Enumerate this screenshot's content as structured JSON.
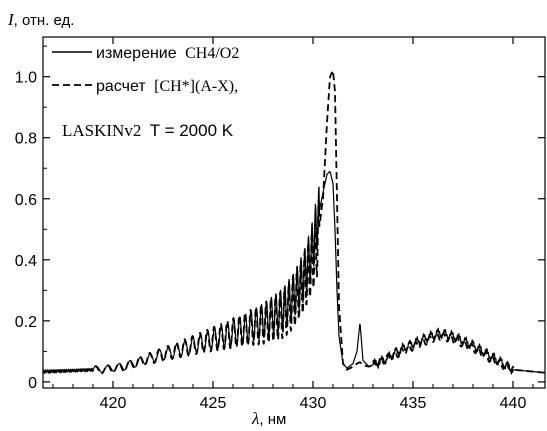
{
  "chart_data": {
    "type": "line",
    "ylabel": {
      "symbol": "I",
      "unit": ", отн. ед."
    },
    "xlabel": {
      "symbol": "λ",
      "unit": ", нм"
    },
    "xlim": [
      416.5,
      441.6
    ],
    "ylim": [
      -0.02,
      1.13
    ],
    "xticks": [
      420,
      425,
      430,
      435,
      440
    ],
    "xtick_labels": [
      "420",
      "425",
      "430",
      "435",
      "440"
    ],
    "yticks": [
      0,
      0.2,
      0.4,
      0.6,
      0.8,
      1.0
    ],
    "ytick_labels": [
      "0",
      "0.2",
      "0.4",
      "0.6",
      "0.8",
      "1.0"
    ],
    "grid": false,
    "legend_position": "top-left",
    "legend": [
      {
        "style": "solid",
        "label": "измерение",
        "formula": "CH4/O2"
      },
      {
        "style": "dashed",
        "label": "расчет",
        "formula": "[CH*](A-X),"
      }
    ],
    "annotation": {
      "model": "LASKINv2",
      "temperature": "T = 2000 K"
    },
    "series": [
      {
        "style": "solid",
        "color": "#000000",
        "x": [
          416.5,
          418,
          419.5,
          420.5,
          421.5,
          422.5,
          423.5,
          424.5,
          425.5,
          426.5,
          427.5,
          428.5,
          429,
          429.5,
          429.9,
          430.2,
          430.5,
          430.7,
          430.85,
          431.0,
          431.1,
          431.2,
          431.3,
          431.5,
          431.7,
          432.0,
          432.2,
          432.35,
          432.5,
          432.8,
          433.5,
          434.5,
          435.5,
          436.3,
          437,
          438,
          439,
          440,
          441.6
        ],
        "y": [
          0.035,
          0.038,
          0.042,
          0.05,
          0.07,
          0.09,
          0.11,
          0.13,
          0.15,
          0.17,
          0.2,
          0.24,
          0.28,
          0.34,
          0.42,
          0.52,
          0.62,
          0.68,
          0.69,
          0.65,
          0.5,
          0.3,
          0.15,
          0.06,
          0.045,
          0.06,
          0.1,
          0.195,
          0.07,
          0.05,
          0.07,
          0.11,
          0.14,
          0.16,
          0.15,
          0.12,
          0.08,
          0.04,
          0.03
        ]
      },
      {
        "style": "dashed",
        "color": "#000000",
        "x": [
          416.5,
          418,
          419.5,
          420.5,
          421.5,
          422.5,
          423.5,
          424.5,
          425.5,
          426.5,
          427.5,
          428.5,
          429,
          429.5,
          429.9,
          430.2,
          430.5,
          430.7,
          430.85,
          431.0,
          431.1,
          431.2,
          431.3,
          431.5,
          431.7,
          432.0,
          432.2,
          432.35,
          432.5,
          432.8,
          433.5,
          434.5,
          435.5,
          436.3,
          437,
          438,
          439,
          440,
          441.6
        ],
        "y": [
          0.032,
          0.036,
          0.04,
          0.048,
          0.07,
          0.09,
          0.11,
          0.13,
          0.15,
          0.17,
          0.19,
          0.22,
          0.26,
          0.32,
          0.38,
          0.45,
          0.6,
          0.85,
          1.0,
          1.02,
          0.95,
          0.6,
          0.25,
          0.06,
          0.04,
          0.05,
          0.06,
          0.065,
          0.055,
          0.05,
          0.07,
          0.1,
          0.13,
          0.15,
          0.14,
          0.11,
          0.07,
          0.04,
          0.03
        ]
      }
    ]
  }
}
